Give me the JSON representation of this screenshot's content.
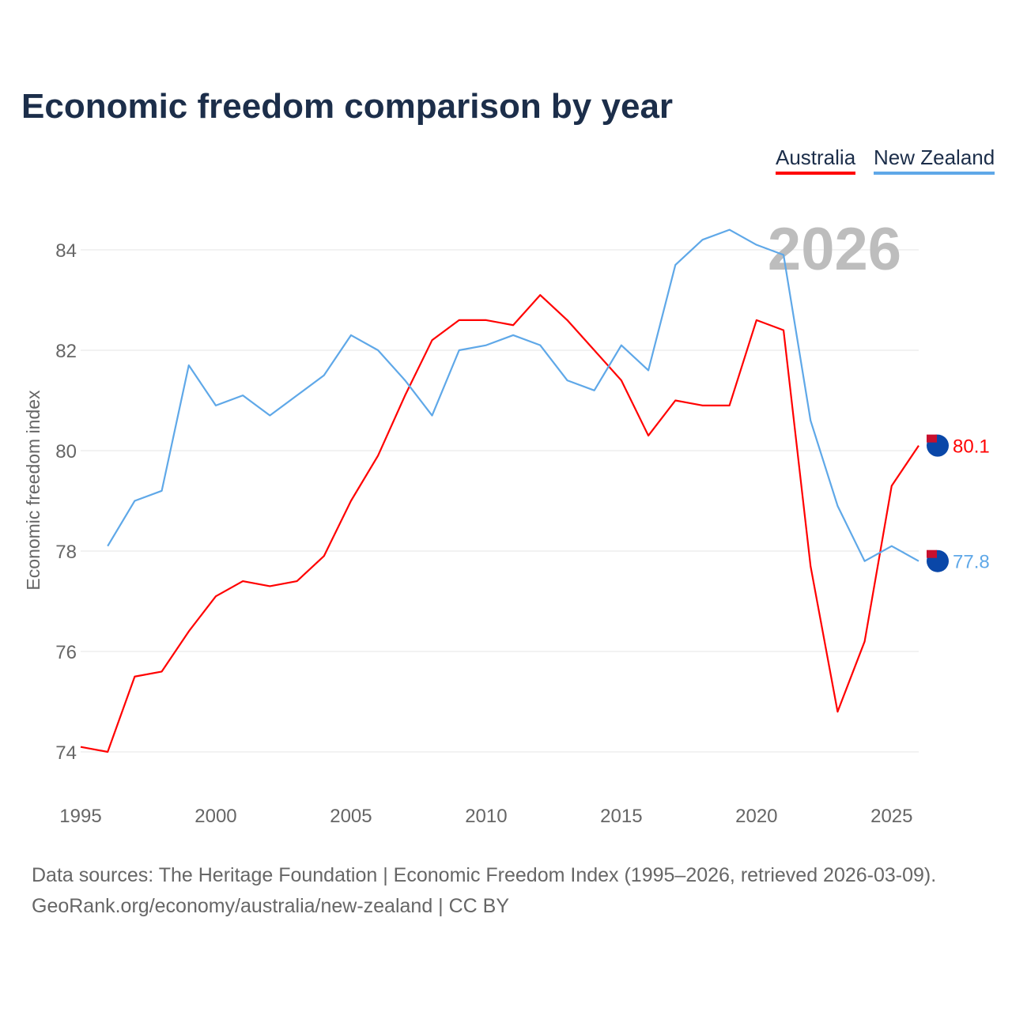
{
  "chart_data": {
    "type": "line",
    "title": "Economic freedom comparison by year",
    "xlabel": "",
    "ylabel": "Economic freedom index",
    "xlim": [
      1995,
      2026
    ],
    "ylim": [
      73.5,
      85
    ],
    "xticks": [
      "1995",
      "2000",
      "2005",
      "2010",
      "2015",
      "2020",
      "2025"
    ],
    "yticks": [
      "74",
      "76",
      "78",
      "80",
      "82",
      "84"
    ],
    "year_watermark": "2026",
    "legend_placement": "top-right",
    "series": [
      {
        "name": "Australia",
        "color": "#ff0000",
        "end_label": "80.1",
        "x": [
          1995,
          1996,
          1997,
          1998,
          1999,
          2000,
          2001,
          2002,
          2003,
          2004,
          2005,
          2006,
          2007,
          2008,
          2009,
          2010,
          2011,
          2012,
          2013,
          2014,
          2015,
          2016,
          2017,
          2018,
          2019,
          2020,
          2021,
          2022,
          2023,
          2024,
          2025,
          2026
        ],
        "values": [
          74.1,
          74.0,
          75.5,
          75.6,
          76.4,
          77.1,
          77.4,
          77.3,
          77.4,
          77.9,
          79.0,
          79.9,
          81.1,
          82.2,
          82.6,
          82.6,
          82.5,
          83.1,
          82.6,
          82.0,
          81.4,
          80.3,
          81.0,
          80.9,
          80.9,
          82.6,
          82.4,
          77.7,
          74.8,
          76.2,
          79.3,
          80.1
        ]
      },
      {
        "name": "New Zealand",
        "color": "#5fa8e8",
        "end_label": "77.8",
        "x": [
          1996,
          1997,
          1998,
          1999,
          2000,
          2001,
          2002,
          2003,
          2004,
          2005,
          2006,
          2007,
          2008,
          2009,
          2010,
          2011,
          2012,
          2013,
          2014,
          2015,
          2016,
          2017,
          2018,
          2019,
          2020,
          2021,
          2022,
          2023,
          2024,
          2025,
          2026
        ],
        "values": [
          78.1,
          79.0,
          79.2,
          81.7,
          80.9,
          81.1,
          80.7,
          81.1,
          81.5,
          82.3,
          82.0,
          81.4,
          80.7,
          82.0,
          82.1,
          82.3,
          82.1,
          81.4,
          81.2,
          82.1,
          81.6,
          83.7,
          84.2,
          84.4,
          84.1,
          83.9,
          80.6,
          78.9,
          77.8,
          78.1,
          77.8
        ]
      }
    ],
    "grid": true
  },
  "footer": {
    "line1": "Data sources: The Heritage Foundation | Economic Freedom Index (1995–2026, retrieved 2026-03-09).",
    "line2": "GeoRank.org/economy/australia/new-zealand | CC BY"
  }
}
